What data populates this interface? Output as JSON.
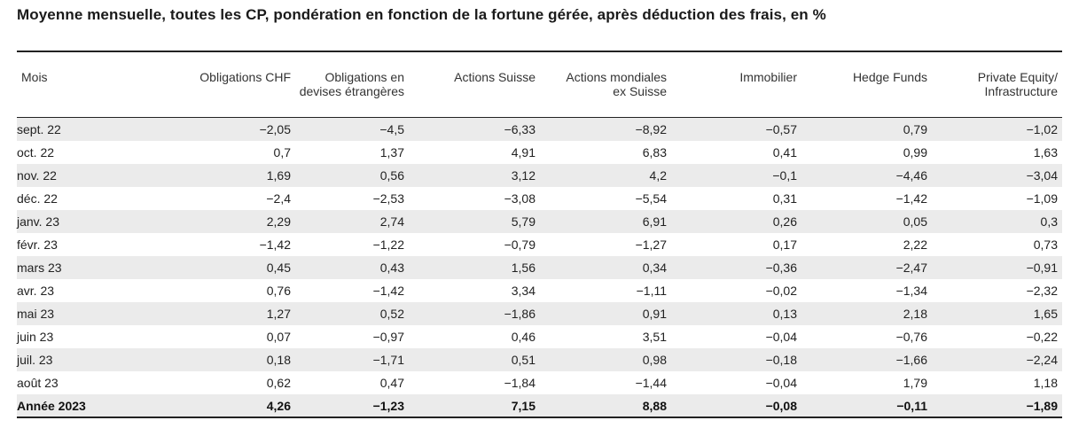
{
  "title": "Moyenne mensuelle, toutes les CP, pondération en fonction de la fortune gérée, après déduction des frais, en %",
  "headers": [
    "Mois",
    "Obligations CHF",
    "Obligations en\ndevises étrangères",
    "Actions Suisse",
    "Actions mondiales\nex Suisse",
    "Immobilier",
    "Hedge Funds",
    "Private Equity/\nInfrastructure"
  ],
  "rows": [
    [
      "sept. 22",
      "−2,05",
      "−4,5",
      "−6,33",
      "−8,92",
      "−0,57",
      "0,79",
      "−1,02"
    ],
    [
      "oct. 22",
      "0,7",
      "1,37",
      "4,91",
      "6,83",
      "0,41",
      "0,99",
      "1,63"
    ],
    [
      "nov. 22",
      "1,69",
      "0,56",
      "3,12",
      "4,2",
      "−0,1",
      "−4,46",
      "−3,04"
    ],
    [
      "déc. 22",
      "−2,4",
      "−2,53",
      "−3,08",
      "−5,54",
      "0,31",
      "−1,42",
      "−1,09"
    ],
    [
      "janv. 23",
      "2,29",
      "2,74",
      "5,79",
      "6,91",
      "0,26",
      "0,05",
      "0,3"
    ],
    [
      "févr. 23",
      "−1,42",
      "−1,22",
      "−0,79",
      "−1,27",
      "0,17",
      "2,22",
      "0,73"
    ],
    [
      "mars 23",
      "0,45",
      "0,43",
      "1,56",
      "0,34",
      "−0,36",
      "−2,47",
      "−0,91"
    ],
    [
      "avr. 23",
      "0,76",
      "−1,42",
      "3,34",
      "−1,11",
      "−0,02",
      "−1,34",
      "−2,32"
    ],
    [
      "mai 23",
      "1,27",
      "0,52",
      "−1,86",
      "0,91",
      "0,13",
      "2,18",
      "1,65"
    ],
    [
      "juin 23",
      "0,07",
      "−0,97",
      "0,46",
      "3,51",
      "−0,04",
      "−0,76",
      "−0,22"
    ],
    [
      "juil. 23",
      "0,18",
      "−1,71",
      "0,51",
      "0,98",
      "−0,18",
      "−1,66",
      "−2,24"
    ],
    [
      "août 23",
      "0,62",
      "0,47",
      "−1,84",
      "−1,44",
      "−0,04",
      "1,79",
      "1,18"
    ]
  ],
  "total": [
    "Année 2023",
    "4,26",
    "−1,23",
    "7,15",
    "8,88",
    "−0,08",
    "−0,11",
    "−1,89"
  ]
}
